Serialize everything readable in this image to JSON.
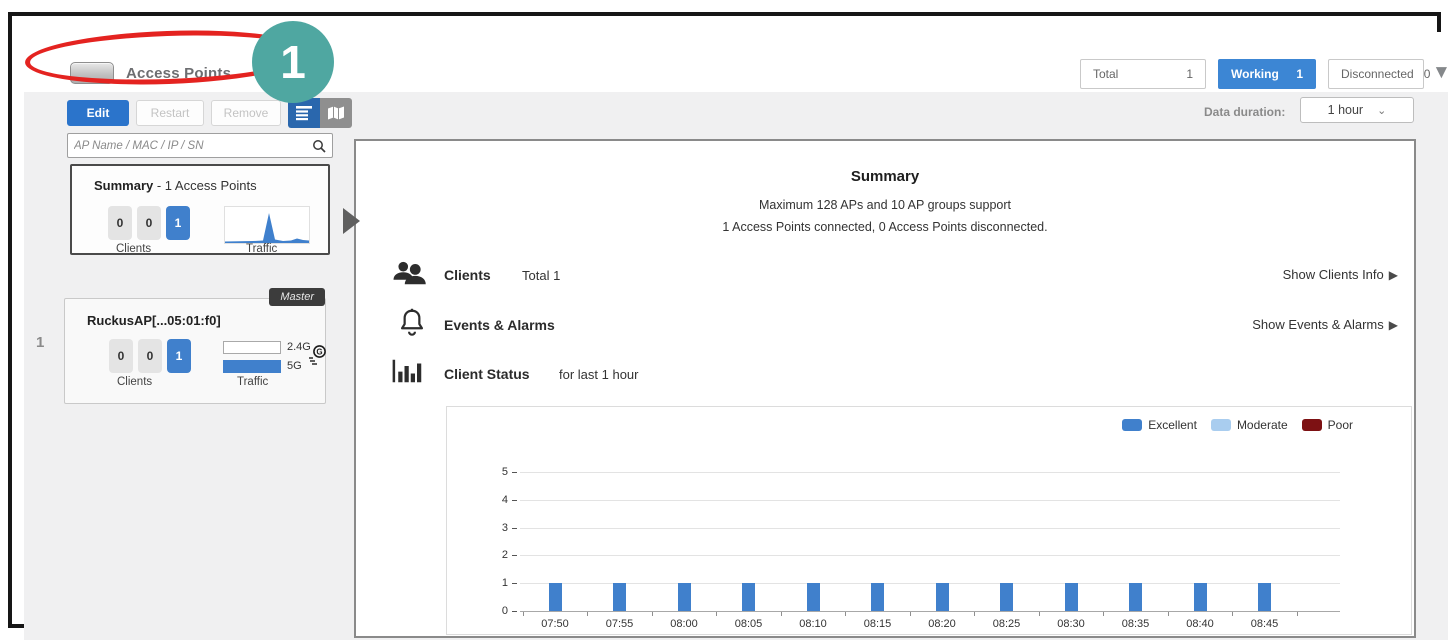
{
  "annotation": {
    "callout_number": "1"
  },
  "header": {
    "title": "Access Points",
    "counters": [
      {
        "label": "Total",
        "count": "1",
        "active": false
      },
      {
        "label": "Working",
        "count": "1",
        "active": true
      },
      {
        "label": "Disconnected",
        "count": "0",
        "active": false
      }
    ]
  },
  "toolbar": {
    "edit_label": "Edit",
    "restart_label": "Restart",
    "remove_label": "Remove",
    "data_duration_label": "Data duration:",
    "data_duration_value": "1 hour"
  },
  "sidebar": {
    "search_placeholder": "AP Name / MAC / IP / SN",
    "summary_card": {
      "title": "Summary",
      "suffix": " - 1 Access Points",
      "client_boxes": [
        "0",
        "0",
        "1"
      ],
      "clients_label": "Clients",
      "traffic_label": "Traffic"
    },
    "ap_card": {
      "row_index": "1",
      "badge": "Master",
      "name": "RuckusAP[...05:01:f0]",
      "client_boxes": [
        "0",
        "0",
        "1"
      ],
      "clients_label": "Clients",
      "traffic_label": "Traffic",
      "band_2_4": "2.4G",
      "band_5": "5G"
    }
  },
  "main": {
    "summary_title": "Summary",
    "summary_line1": "Maximum 128 APs and 10 AP groups support",
    "summary_line2": "1 Access Points connected, 0 Access Points disconnected.",
    "clients_label": "Clients",
    "clients_total": "Total 1",
    "clients_link": "Show Clients Info",
    "events_label": "Events & Alarms",
    "events_link": "Show Events & Alarms",
    "status_label": "Client Status",
    "status_suffix": "for last 1 hour"
  },
  "chart_data": {
    "type": "bar",
    "title": "",
    "xlabel": "",
    "ylabel": "",
    "x": [
      "07:50",
      "07:55",
      "08:00",
      "08:05",
      "08:10",
      "08:15",
      "08:20",
      "08:25",
      "08:30",
      "08:35",
      "08:40",
      "08:45"
    ],
    "series": [
      {
        "name": "Excellent",
        "color": "#4080cc",
        "values": [
          1,
          1,
          1,
          1,
          1,
          1,
          1,
          1,
          1,
          1,
          1,
          1
        ]
      },
      {
        "name": "Moderate",
        "color": "#a9cdef",
        "values": [
          0,
          0,
          0,
          0,
          0,
          0,
          0,
          0,
          0,
          0,
          0,
          0
        ]
      },
      {
        "name": "Poor",
        "color": "#7d1113",
        "values": [
          0,
          0,
          0,
          0,
          0,
          0,
          0,
          0,
          0,
          0,
          0,
          0
        ]
      }
    ],
    "ylim": [
      0,
      5
    ],
    "yticks": [
      0,
      1,
      2,
      3,
      4,
      5
    ],
    "grid": true,
    "legend_position": "top-right"
  }
}
